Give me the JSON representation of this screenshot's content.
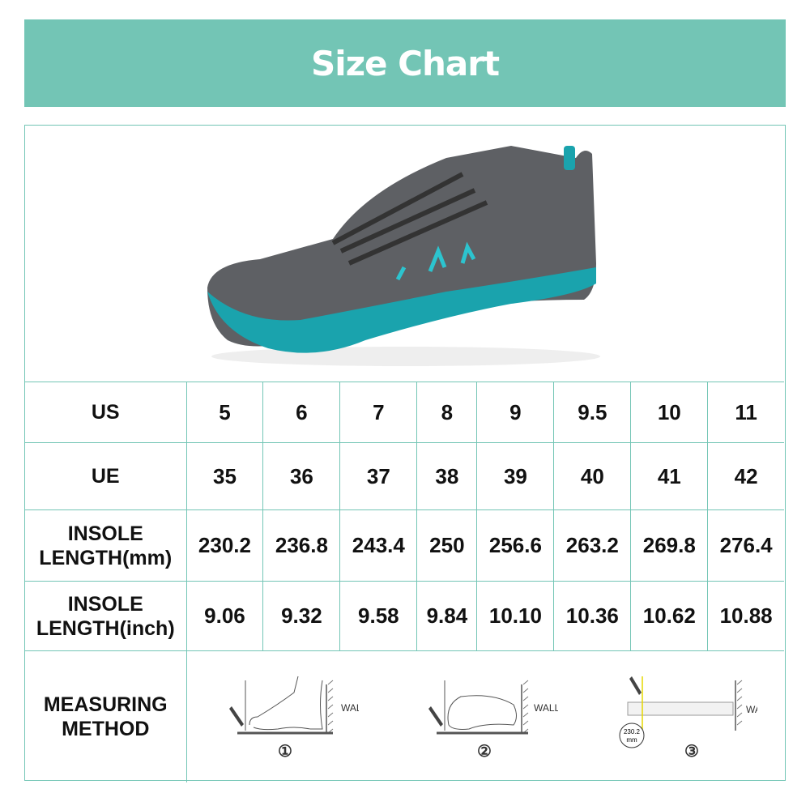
{
  "title": "Size Chart",
  "colors": {
    "accent": "#73c5b5",
    "shoe_teal": "#1aa3ad",
    "shoe_gray": "#5e6064"
  },
  "rows": [
    {
      "label": "US",
      "values": [
        "5",
        "6",
        "7",
        "8",
        "9",
        "9.5",
        "10",
        "11"
      ]
    },
    {
      "label": "UE",
      "values": [
        "35",
        "36",
        "37",
        "38",
        "39",
        "40",
        "41",
        "42"
      ]
    },
    {
      "label": "INSOLE LENGTH(mm)",
      "values": [
        "230.2",
        "236.8",
        "243.4",
        "250",
        "256.6",
        "263.2",
        "269.8",
        "276.4"
      ]
    },
    {
      "label": "INSOLE LENGTH(inch)",
      "values": [
        "9.06",
        "9.32",
        "9.58",
        "9.84",
        "10.10",
        "10.36",
        "10.62",
        "10.88"
      ]
    }
  ],
  "measuring": {
    "label": "MEASURING METHOD",
    "wall": "WALL",
    "steps": [
      "①",
      "②",
      "③"
    ],
    "sample_value": "230.2",
    "sample_unit": "mm"
  }
}
